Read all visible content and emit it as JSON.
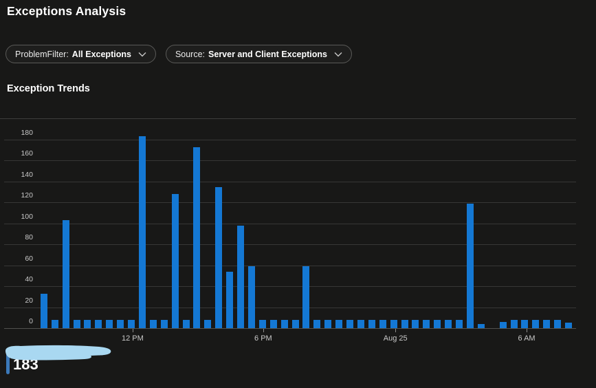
{
  "page": {
    "title": "Exceptions Analysis"
  },
  "filters": [
    {
      "label": "ProblemFilter:",
      "value": "All Exceptions"
    },
    {
      "label": "Source:",
      "value": "Server and Client Exceptions"
    }
  ],
  "section": {
    "title": "Exception Trends"
  },
  "chart_data": {
    "type": "bar",
    "title": "Exception Trends",
    "bar_color": "#1478d4",
    "interval": "30 minutes per bar",
    "values": [
      33,
      8,
      103,
      8,
      8,
      8,
      8,
      8,
      8,
      183,
      8,
      8,
      128,
      8,
      173,
      8,
      135,
      54,
      98,
      59,
      8,
      8,
      8,
      8,
      59,
      8,
      8,
      8,
      8,
      8,
      8,
      8,
      8,
      8,
      8,
      8,
      8,
      8,
      8,
      119,
      4,
      0,
      6,
      8,
      8,
      8,
      8,
      8,
      5
    ],
    "y_axis": {
      "ticks": [
        0,
        20,
        40,
        60,
        80,
        100,
        120,
        140,
        160,
        180
      ],
      "max": 180
    },
    "x_axis": {
      "tick_labels": [
        "12 PM",
        "6 PM",
        "Aug 25",
        "6 AM"
      ],
      "tick_positions": [
        0.175,
        0.418,
        0.664,
        0.908
      ]
    },
    "grid": "horizontal",
    "legend_position": "bottom-left"
  },
  "annotation": {
    "count": "183",
    "scribble_color": "#a9d8f1",
    "stripe_color": "#3b79ba"
  }
}
